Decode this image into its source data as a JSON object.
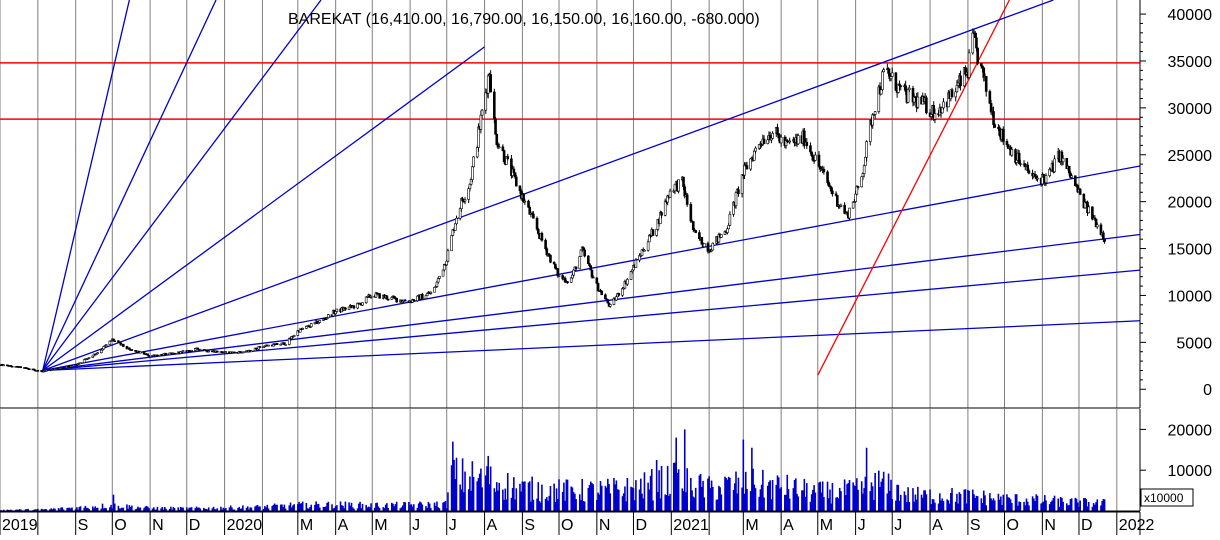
{
  "chart_data": [
    {
      "type": "candlestick",
      "title": "BAREKAT (16,410.00, 16,790.00, 16,150.00, 16,160.00, -680.000)",
      "ylim": [
        -2000,
        41500
      ],
      "y_ticks": [
        {
          "value": 0,
          "label": "0"
        },
        {
          "value": 5000,
          "label": "5000"
        },
        {
          "value": 10000,
          "label": "10000"
        },
        {
          "value": 15000,
          "label": "15000"
        },
        {
          "value": 20000,
          "label": "20000"
        },
        {
          "value": 25000,
          "label": "25000"
        },
        {
          "value": 30000,
          "label": "30000"
        },
        {
          "value": 35000,
          "label": "35000"
        },
        {
          "value": 40000,
          "label": "40000"
        }
      ],
      "x_range": [
        "2019-07-01",
        "2022-01-20"
      ],
      "x_ticks": [
        {
          "date": "2019-07-01",
          "label": "2019"
        },
        {
          "date": "2019-08-01",
          "label": ""
        },
        {
          "date": "2019-09-01",
          "label": "S"
        },
        {
          "date": "2019-10-01",
          "label": "O"
        },
        {
          "date": "2019-11-01",
          "label": "N"
        },
        {
          "date": "2019-12-01",
          "label": "D"
        },
        {
          "date": "2020-01-01",
          "label": "2020"
        },
        {
          "date": "2020-02-01",
          "label": ""
        },
        {
          "date": "2020-03-01",
          "label": "M"
        },
        {
          "date": "2020-04-01",
          "label": "A"
        },
        {
          "date": "2020-05-01",
          "label": "M"
        },
        {
          "date": "2020-06-01",
          "label": "J"
        },
        {
          "date": "2020-07-01",
          "label": "J"
        },
        {
          "date": "2020-08-01",
          "label": "A"
        },
        {
          "date": "2020-09-01",
          "label": "S"
        },
        {
          "date": "2020-10-01",
          "label": "O"
        },
        {
          "date": "2020-11-01",
          "label": "N"
        },
        {
          "date": "2020-12-01",
          "label": "D"
        },
        {
          "date": "2021-01-01",
          "label": "2021"
        },
        {
          "date": "2021-02-01",
          "label": ""
        },
        {
          "date": "2021-03-01",
          "label": "M"
        },
        {
          "date": "2021-04-01",
          "label": "A"
        },
        {
          "date": "2021-05-01",
          "label": "M"
        },
        {
          "date": "2021-06-01",
          "label": "J"
        },
        {
          "date": "2021-07-01",
          "label": "J"
        },
        {
          "date": "2021-08-01",
          "label": "A"
        },
        {
          "date": "2021-09-01",
          "label": "S"
        },
        {
          "date": "2021-10-01",
          "label": "O"
        },
        {
          "date": "2021-11-01",
          "label": "N"
        },
        {
          "date": "2021-12-01",
          "label": "D"
        },
        {
          "date": "2022-01-01",
          "label": "2022"
        }
      ],
      "price_path": [
        [
          "2019-07-01",
          2600
        ],
        [
          "2019-07-20",
          2300
        ],
        [
          "2019-08-05",
          1900
        ],
        [
          "2019-09-01",
          2600
        ],
        [
          "2019-09-20",
          4000
        ],
        [
          "2019-10-01",
          5300
        ],
        [
          "2019-10-15",
          4200
        ],
        [
          "2019-11-01",
          3600
        ],
        [
          "2019-11-20",
          3800
        ],
        [
          "2019-12-10",
          4300
        ],
        [
          "2020-01-01",
          3900
        ],
        [
          "2020-01-20",
          4000
        ],
        [
          "2020-02-01",
          4600
        ],
        [
          "2020-02-20",
          4900
        ],
        [
          "2020-03-01",
          6200
        ],
        [
          "2020-03-20",
          7300
        ],
        [
          "2020-04-01",
          8300
        ],
        [
          "2020-04-20",
          9000
        ],
        [
          "2020-05-01",
          10100
        ],
        [
          "2020-05-20",
          9600
        ],
        [
          "2020-06-01",
          9400
        ],
        [
          "2020-06-20",
          10400
        ],
        [
          "2020-07-01",
          14000
        ],
        [
          "2020-07-10",
          19000
        ],
        [
          "2020-07-20",
          22000
        ],
        [
          "2020-07-28",
          28000
        ],
        [
          "2020-08-05",
          34000
        ],
        [
          "2020-08-10",
          27000
        ],
        [
          "2020-08-20",
          24000
        ],
        [
          "2020-09-01",
          20500
        ],
        [
          "2020-09-20",
          15000
        ],
        [
          "2020-10-01",
          12000
        ],
        [
          "2020-10-10",
          11500
        ],
        [
          "2020-10-20",
          14800
        ],
        [
          "2020-11-01",
          11000
        ],
        [
          "2020-11-12",
          8800
        ],
        [
          "2020-11-25",
          11500
        ],
        [
          "2020-12-10",
          15200
        ],
        [
          "2020-12-20",
          17500
        ],
        [
          "2021-01-01",
          21500
        ],
        [
          "2021-01-10",
          22000
        ],
        [
          "2021-01-20",
          16500
        ],
        [
          "2021-02-01",
          15000
        ],
        [
          "2021-02-15",
          17000
        ],
        [
          "2021-03-01",
          23000
        ],
        [
          "2021-03-15",
          26500
        ],
        [
          "2021-03-25",
          27500
        ],
        [
          "2021-04-05",
          26000
        ],
        [
          "2021-04-20",
          26800
        ],
        [
          "2021-05-01",
          24000
        ],
        [
          "2021-05-15",
          20500
        ],
        [
          "2021-05-25",
          18500
        ],
        [
          "2021-06-05",
          22000
        ],
        [
          "2021-06-15",
          29500
        ],
        [
          "2021-06-25",
          34000
        ],
        [
          "2021-07-10",
          31500
        ],
        [
          "2021-07-25",
          30500
        ],
        [
          "2021-08-05",
          29500
        ],
        [
          "2021-08-20",
          31500
        ],
        [
          "2021-09-01",
          34000
        ],
        [
          "2021-09-05",
          37500
        ],
        [
          "2021-09-12",
          34000
        ],
        [
          "2021-09-22",
          29000
        ],
        [
          "2021-10-01",
          26500
        ],
        [
          "2021-10-15",
          24000
        ],
        [
          "2021-10-25",
          22500
        ],
        [
          "2021-11-05",
          22500
        ],
        [
          "2021-11-15",
          25000
        ],
        [
          "2021-11-25",
          22500
        ],
        [
          "2021-12-05",
          19800
        ],
        [
          "2021-12-15",
          17800
        ],
        [
          "2021-12-22",
          16160
        ]
      ],
      "horizontal_lines": [
        {
          "value": 34800,
          "color": "#ff0000"
        },
        {
          "value": 28800,
          "color": "#ff0000"
        }
      ],
      "trend_lines": [
        {
          "from": [
            "2021-05-01",
            1500
          ],
          "to": [
            "2021-10-05",
            41500
          ],
          "color": "#ff0000"
        },
        {
          "from": [
            "2019-08-05",
            2000
          ],
          "to": [
            "2021-11-10",
            41500
          ],
          "color": "#0000cc"
        }
      ],
      "gann_fan": {
        "origin": [
          "2019-08-05",
          2000
        ],
        "color": "#0000cc",
        "rays": [
          [
            "2019-10-15",
            41500
          ],
          [
            "2019-12-25",
            41500
          ],
          [
            "2020-03-20",
            41500
          ],
          [
            "2020-08-01",
            36500
          ],
          [
            "2022-01-20",
            23800
          ],
          [
            "2022-01-20",
            16500
          ],
          [
            "2022-01-20",
            12700
          ],
          [
            "2022-01-20",
            7300
          ]
        ]
      }
    },
    {
      "type": "bar",
      "series": [
        {
          "values_note": ""
        }
      ],
      "ylim": [
        0,
        25000
      ],
      "y_ticks": [
        {
          "value": 10000,
          "label": "10000"
        },
        {
          "value": 20000,
          "label": "20000"
        }
      ],
      "multiplier_label": "x10000",
      "volume_profile": [
        [
          "2019-07-01",
          300
        ],
        [
          "2019-08-05",
          400
        ],
        [
          "2019-09-01",
          900
        ],
        [
          "2019-10-01",
          1500
        ],
        [
          "2019-11-01",
          800
        ],
        [
          "2019-12-01",
          700
        ],
        [
          "2020-01-01",
          900
        ],
        [
          "2020-02-01",
          1100
        ],
        [
          "2020-03-01",
          1600
        ],
        [
          "2020-04-01",
          1700
        ],
        [
          "2020-05-01",
          1500
        ],
        [
          "2020-06-01",
          1600
        ],
        [
          "2020-07-01",
          1800
        ],
        [
          "2020-07-05",
          9500
        ],
        [
          "2020-08-01",
          8500
        ],
        [
          "2020-09-01",
          6000
        ],
        [
          "2020-10-01",
          5500
        ],
        [
          "2020-11-01",
          5500
        ],
        [
          "2020-12-01",
          6000
        ],
        [
          "2021-01-01",
          8500
        ],
        [
          "2021-02-01",
          6000
        ],
        [
          "2021-03-01",
          7500
        ],
        [
          "2021-04-01",
          6500
        ],
        [
          "2021-05-01",
          5000
        ],
        [
          "2021-06-01",
          5500
        ],
        [
          "2021-06-20",
          7500
        ],
        [
          "2021-07-15",
          4200
        ],
        [
          "2021-09-01",
          4000
        ],
        [
          "2021-10-01",
          3200
        ],
        [
          "2021-11-01",
          2800
        ],
        [
          "2021-12-01",
          2300
        ],
        [
          "2021-12-22",
          2100
        ]
      ],
      "spikes": [
        [
          "2019-10-02",
          4000
        ],
        [
          "2020-07-03",
          18500
        ],
        [
          "2020-07-06",
          17000
        ],
        [
          "2020-08-04",
          13500
        ],
        [
          "2020-10-10",
          12000
        ],
        [
          "2020-12-20",
          12500
        ],
        [
          "2021-01-05",
          18000
        ],
        [
          "2021-01-12",
          20000
        ],
        [
          "2021-03-01",
          17500
        ],
        [
          "2021-03-08",
          15500
        ],
        [
          "2021-06-10",
          15500
        ],
        [
          "2021-06-18",
          13500
        ],
        [
          "2021-06-25",
          10500
        ]
      ]
    }
  ]
}
